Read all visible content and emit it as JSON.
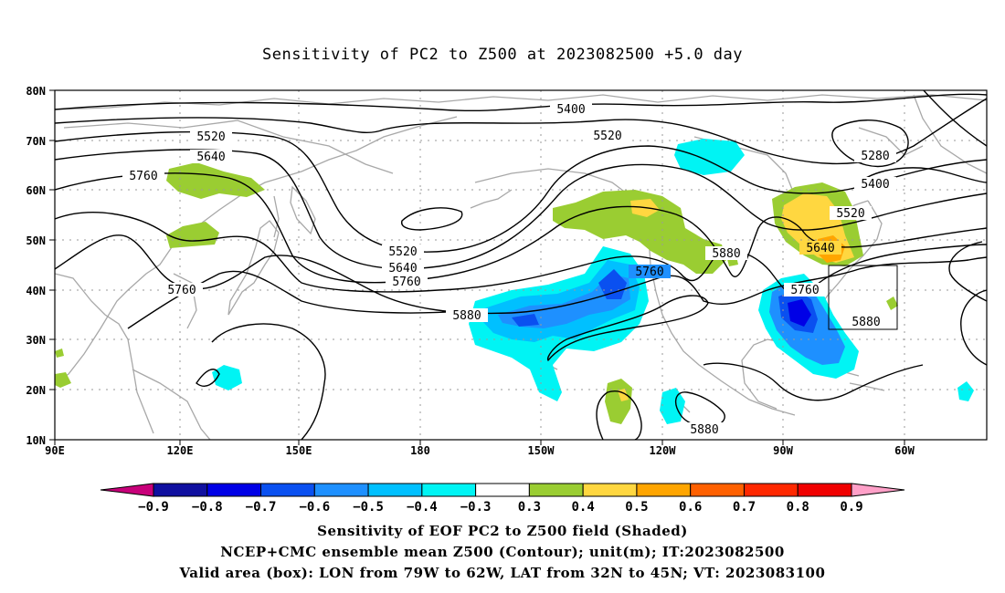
{
  "title": "Sensitivity of PC2 to Z500 at 2023082500 +5.0 day",
  "lat_labels": [
    "80N",
    "70N",
    "60N",
    "50N",
    "40N",
    "30N",
    "20N",
    "10N"
  ],
  "lon_labels": [
    "90E",
    "120E",
    "150E",
    "180",
    "150W",
    "120W",
    "90W",
    "60W"
  ],
  "contour_labels": [
    "5400",
    "5520",
    "5640",
    "5760",
    "5280",
    "5400",
    "5520",
    "5640",
    "5520",
    "5520",
    "5640",
    "5760",
    "5760",
    "5880",
    "5880",
    "5760",
    "5880",
    "5880",
    "5760"
  ],
  "colorbar": {
    "ticks": [
      "−0.9",
      "−0.8",
      "−0.7",
      "−0.6",
      "−0.5",
      "−0.4",
      "−0.3",
      "0.3",
      "0.4",
      "0.5",
      "0.6",
      "0.7",
      "0.8",
      "0.9"
    ],
    "colors": [
      "#c8007a",
      "#1010a0",
      "#0000e6",
      "#0a50f0",
      "#1e90ff",
      "#00c0ff",
      "#00f4f4",
      "#ffffff",
      "#9acd32",
      "#ffd740",
      "#ffa500",
      "#ff6000",
      "#ff2800",
      "#f00000",
      "#ffa0c8"
    ]
  },
  "captions": [
    "Sensitivity of EOF PC2 to Z500 field (Shaded)",
    "NCEP+CMC ensemble mean Z500 (Contour); unit(m); IT:2023082500",
    "Valid area (box): LON from 79W to 62W, LAT from 32N to 45N; VT: 2023083100"
  ]
}
